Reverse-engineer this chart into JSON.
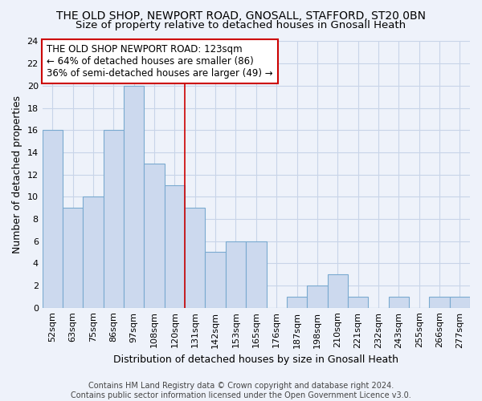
{
  "title": "THE OLD SHOP, NEWPORT ROAD, GNOSALL, STAFFORD, ST20 0BN",
  "subtitle": "Size of property relative to detached houses in Gnosall Heath",
  "xlabel": "Distribution of detached houses by size in Gnosall Heath",
  "ylabel": "Number of detached properties",
  "categories": [
    "52sqm",
    "63sqm",
    "75sqm",
    "86sqm",
    "97sqm",
    "108sqm",
    "120sqm",
    "131sqm",
    "142sqm",
    "153sqm",
    "165sqm",
    "176sqm",
    "187sqm",
    "198sqm",
    "210sqm",
    "221sqm",
    "232sqm",
    "243sqm",
    "255sqm",
    "266sqm",
    "277sqm"
  ],
  "values": [
    16,
    9,
    10,
    16,
    20,
    13,
    11,
    9,
    5,
    6,
    6,
    0,
    1,
    2,
    3,
    1,
    0,
    1,
    0,
    1,
    1
  ],
  "bar_color": "#ccd9ee",
  "bar_edge_color": "#7aaad0",
  "highlight_line_index": 6,
  "highlight_line_color": "#cc0000",
  "annotation_text": "THE OLD SHOP NEWPORT ROAD: 123sqm\n← 64% of detached houses are smaller (86)\n36% of semi-detached houses are larger (49) →",
  "annotation_box_facecolor": "#ffffff",
  "annotation_box_edgecolor": "#cc0000",
  "ylim": [
    0,
    24
  ],
  "yticks": [
    0,
    2,
    4,
    6,
    8,
    10,
    12,
    14,
    16,
    18,
    20,
    22,
    24
  ],
  "footer": "Contains HM Land Registry data © Crown copyright and database right 2024.\nContains public sector information licensed under the Open Government Licence v3.0.",
  "background_color": "#eef2fa",
  "grid_color": "#c8d4e8",
  "title_fontsize": 10,
  "subtitle_fontsize": 9.5,
  "axis_label_fontsize": 9,
  "tick_fontsize": 8,
  "annotation_fontsize": 8.5,
  "footer_fontsize": 7
}
